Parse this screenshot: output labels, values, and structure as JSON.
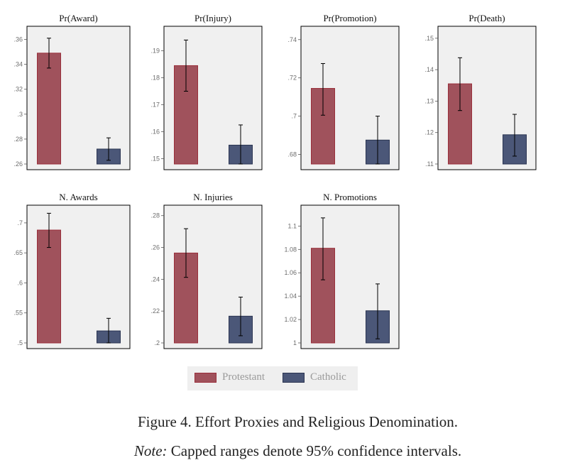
{
  "colors": {
    "protestant": "#a0525c",
    "protestant_edge": "#9a2f3b",
    "catholic": "#4b5778",
    "catholic_edge": "#2b3552",
    "panel_bg": "#f0f0f0",
    "frame": "#000000",
    "tick_text": "#6e6e6e"
  },
  "legend": {
    "protestant": "Protestant",
    "catholic": "Catholic"
  },
  "caption": {
    "title": "Figure 4. Effort Proxies and Religious Denomination.",
    "note_label": "Note:",
    "note_text": " Capped ranges denote 95% confidence intervals."
  },
  "chart_data": [
    {
      "type": "bar",
      "title": "Pr(Award)",
      "categories": [
        "Protestant",
        "Catholic"
      ],
      "values": [
        0.349,
        0.272
      ],
      "ci": [
        [
          0.337,
          0.361
        ],
        [
          0.263,
          0.281
        ]
      ],
      "ylim": [
        0.26,
        0.366
      ],
      "yticks": [
        0.26,
        0.28,
        0.3,
        0.32,
        0.34,
        0.36
      ],
      "yticklabels": [
        ".26",
        ".28",
        ".3",
        ".32",
        ".34",
        ".36"
      ],
      "ylabel": "",
      "xlabel": ""
    },
    {
      "type": "bar",
      "title": "Pr(Injury)",
      "categories": [
        "Protestant",
        "Catholic"
      ],
      "values": [
        0.1845,
        0.155
      ],
      "ci": [
        [
          0.175,
          0.194
        ],
        [
          0.148,
          0.1625
        ]
      ],
      "ylim": [
        0.148,
        0.197
      ],
      "yticks": [
        0.15,
        0.16,
        0.17,
        0.18,
        0.19
      ],
      "yticklabels": [
        ".15",
        ".16",
        ".17",
        ".18",
        ".19"
      ],
      "ylabel": "",
      "xlabel": ""
    },
    {
      "type": "bar",
      "title": "Pr(Promotion)",
      "categories": [
        "Protestant",
        "Catholic"
      ],
      "values": [
        0.7145,
        0.6875
      ],
      "ci": [
        [
          0.7005,
          0.7275
        ],
        [
          0.675,
          0.7
        ]
      ],
      "ylim": [
        0.675,
        0.744
      ],
      "yticks": [
        0.68,
        0.7,
        0.72,
        0.74
      ],
      "yticklabels": [
        ".68",
        ".7",
        ".72",
        ".74"
      ],
      "ylabel": "",
      "xlabel": ""
    },
    {
      "type": "bar",
      "title": "Pr(Death)",
      "categories": [
        "Protestant",
        "Catholic"
      ],
      "values": [
        0.1355,
        0.1193
      ],
      "ci": [
        [
          0.127,
          0.1438
        ],
        [
          0.1125,
          0.1258
        ]
      ],
      "ylim": [
        0.11,
        0.152
      ],
      "yticks": [
        0.11,
        0.12,
        0.13,
        0.14,
        0.15
      ],
      "yticklabels": [
        ".11",
        ".12",
        ".13",
        ".14",
        ".15"
      ],
      "ylabel": "",
      "xlabel": ""
    },
    {
      "type": "bar",
      "title": "N. Awards",
      "categories": [
        "Protestant",
        "Catholic"
      ],
      "values": [
        0.688,
        0.52
      ],
      "ci": [
        [
          0.659,
          0.716
        ],
        [
          0.5,
          0.541
        ]
      ],
      "ylim": [
        0.5,
        0.72
      ],
      "yticks": [
        0.5,
        0.55,
        0.6,
        0.65,
        0.7
      ],
      "yticklabels": [
        ".5",
        ".55",
        ".6",
        ".65",
        ".7"
      ],
      "ylabel": "",
      "xlabel": ""
    },
    {
      "type": "bar",
      "title": "N. Injuries",
      "categories": [
        "Protestant",
        "Catholic"
      ],
      "values": [
        0.2565,
        0.2168
      ],
      "ci": [
        [
          0.2412,
          0.2718
        ],
        [
          0.2045,
          0.2288
        ]
      ],
      "ylim": [
        0.2,
        0.283
      ],
      "yticks": [
        0.2,
        0.22,
        0.24,
        0.26,
        0.28
      ],
      "yticklabels": [
        ".2",
        ".22",
        ".24",
        ".26",
        ".28"
      ],
      "ylabel": "",
      "xlabel": ""
    },
    {
      "type": "bar",
      "title": "N. Promotions",
      "categories": [
        "Protestant",
        "Catholic"
      ],
      "values": [
        1.081,
        1.0275
      ],
      "ci": [
        [
          1.054,
          1.107
        ],
        [
          1.0035,
          1.0505
        ]
      ],
      "ylim": [
        1.0,
        1.113
      ],
      "yticks": [
        1.0,
        1.02,
        1.04,
        1.06,
        1.08,
        1.1
      ],
      "yticklabels": [
        "1",
        "1.02",
        "1.04",
        "1.06",
        "1.08",
        "1.1"
      ],
      "ylabel": "",
      "xlabel": ""
    }
  ]
}
